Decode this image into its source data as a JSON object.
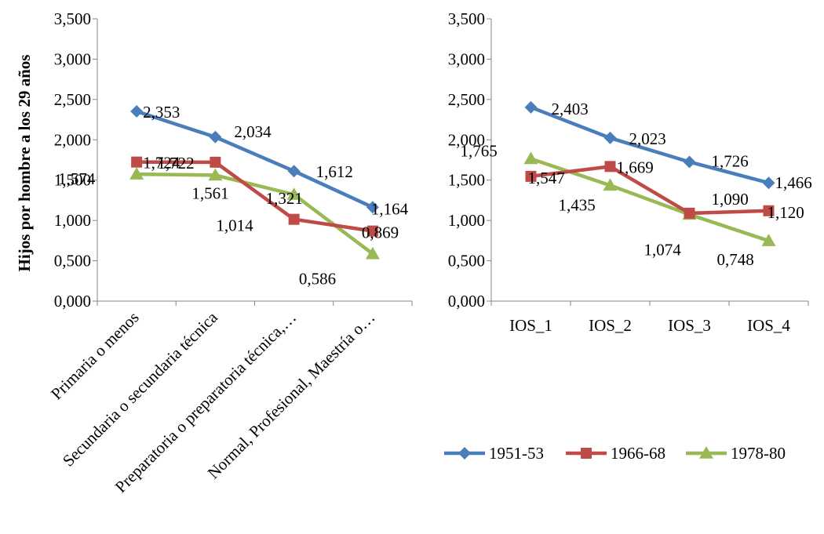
{
  "colors": {
    "1951-53": "#4a7ebb",
    "1966-68": "#be4b48",
    "1978-80": "#98b954",
    "axis": "#868686"
  },
  "legend": {
    "placement": "bottom-right",
    "entries": [
      {
        "name": "1951-53",
        "marker": "diamond"
      },
      {
        "name": "1966-68",
        "marker": "square"
      },
      {
        "name": "1978-80",
        "marker": "triangle"
      }
    ]
  },
  "chart_data": [
    {
      "type": "line",
      "title": "",
      "ylabel": "Hijos por hombre a los 29 años",
      "xlabel": "",
      "ylim": [
        0,
        3.5
      ],
      "yticks": [
        "0,000",
        "0,500",
        "1,000",
        "1,500",
        "2,000",
        "2,500",
        "3,000",
        "3,500"
      ],
      "grid": false,
      "categories": [
        "Primaria o menos",
        "Secundaria o secundaria técnica",
        "Preparatoria o preparatoria técnica,…",
        "Normal, Profesional, Maestría o…"
      ],
      "series": [
        {
          "name": "1951-53",
          "values": [
            2.353,
            2.034,
            1.612,
            1.164
          ],
          "labels": [
            "2,353",
            "2,034",
            "1,612",
            "1,164"
          ]
        },
        {
          "name": "1966-68",
          "values": [
            1.724,
            1.722,
            1.014,
            0.869
          ],
          "labels": [
            "1,724",
            "1,722",
            "1,014",
            "0,869"
          ]
        },
        {
          "name": "1978-80",
          "values": [
            1.574,
            1.561,
            1.321,
            0.586
          ],
          "labels": [
            "1,574",
            "1,561",
            "1,321",
            "0,586"
          ]
        }
      ]
    },
    {
      "type": "line",
      "title": "",
      "ylabel": "",
      "xlabel": "",
      "ylim": [
        0,
        3.5
      ],
      "yticks": [
        "0,000",
        "0,500",
        "1,000",
        "1,500",
        "2,000",
        "2,500",
        "3,000",
        "3,500"
      ],
      "grid": false,
      "categories": [
        "IOS_1",
        "IOS_2",
        "IOS_3",
        "IOS_4"
      ],
      "series": [
        {
          "name": "1951-53",
          "values": [
            2.403,
            2.023,
            1.726,
            1.466
          ],
          "labels": [
            "2,403",
            "2,023",
            "1,726",
            "1,466"
          ]
        },
        {
          "name": "1966-68",
          "values": [
            1.547,
            1.669,
            1.09,
            1.12
          ],
          "labels": [
            "1,547",
            "1,669",
            "1,090",
            "1,120"
          ]
        },
        {
          "name": "1978-80",
          "values": [
            1.765,
            1.435,
            1.074,
            0.748
          ],
          "labels": [
            "1,765",
            "1,435",
            "1,074",
            "0,748"
          ]
        }
      ]
    }
  ]
}
